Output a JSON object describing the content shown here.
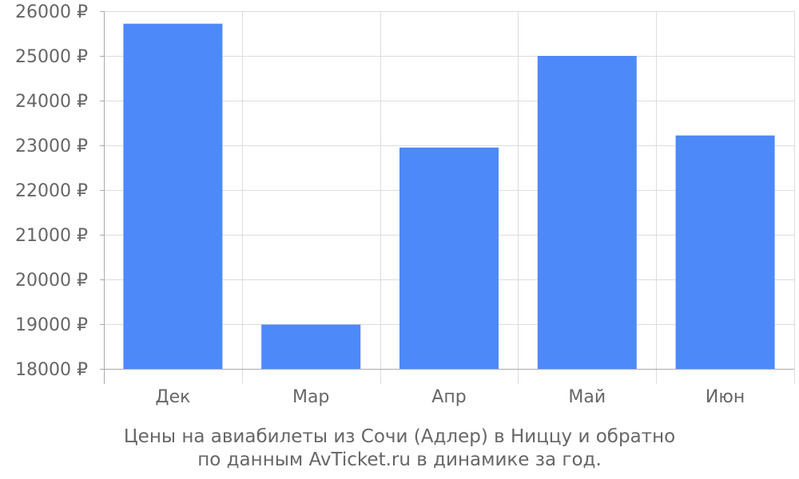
{
  "chart_data": {
    "type": "bar",
    "categories": [
      "Дек",
      "Мар",
      "Апр",
      "Май",
      "Июн"
    ],
    "values": [
      25720,
      18990,
      22950,
      25000,
      23220
    ],
    "ylim": [
      18000,
      26000
    ],
    "yticks": [
      18000,
      19000,
      20000,
      21000,
      22000,
      23000,
      24000,
      25000,
      26000
    ],
    "ytick_labels": [
      "18000 ₽",
      "19000 ₽",
      "20000 ₽",
      "21000 ₽",
      "22000 ₽",
      "23000 ₽",
      "24000 ₽",
      "25000 ₽",
      "26000 ₽"
    ],
    "grid": true,
    "bar_color": "#4d89f9",
    "grid_color": "#dddddd",
    "axis_color": "#aaaaaa",
    "text_color": "#666666"
  },
  "caption": {
    "line1": "Цены на авиабилеты из Сочи (Адлер) в Ниццу и обратно",
    "line2": "по данным AvTicket.ru в динамике за год."
  }
}
